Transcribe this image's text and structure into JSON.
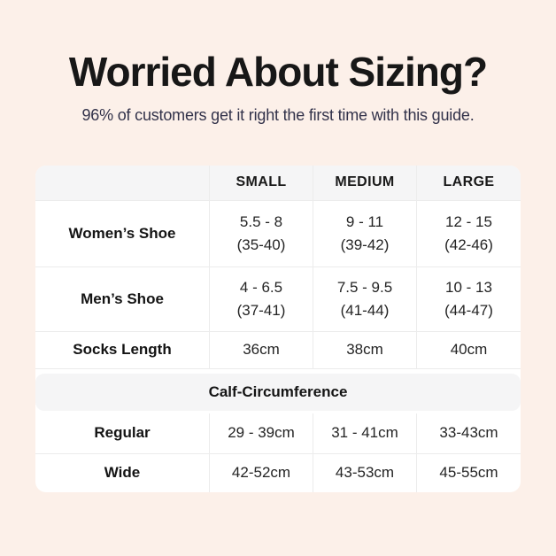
{
  "colors": {
    "page_background": "#fcf0e9",
    "card_background": "#ffffff",
    "band_background": "#f5f5f6",
    "title_text": "#171717",
    "subtitle_text": "#32324a"
  },
  "header": {
    "title": "Worried About Sizing?",
    "subtitle": "96% of customers get it right the first time with this guide."
  },
  "table": {
    "columns": {
      "small": "SMALL",
      "medium": "MEDIUM",
      "large": "LARGE"
    },
    "womens_shoe": {
      "label": "Women’s Shoe",
      "small_line1": "5.5 - 8",
      "small_line2": "(35-40)",
      "medium_line1": "9 - 11",
      "medium_line2": "(39-42)",
      "large_line1": "12 - 15",
      "large_line2": "(42-46)"
    },
    "mens_shoe": {
      "label": "Men’s Shoe",
      "small_line1": "4 - 6.5",
      "small_line2": "(37-41)",
      "medium_line1": "7.5 - 9.5",
      "medium_line2": "(41-44)",
      "large_line1": "10 - 13",
      "large_line2": "(44-47)"
    },
    "socks_length": {
      "label": "Socks Length",
      "small": "36cm",
      "medium": "38cm",
      "large": "40cm"
    },
    "calf_section_header": "Calf-Circumference",
    "regular": {
      "label": "Regular",
      "small": "29 - 39cm",
      "medium": "31 - 41cm",
      "large": "33-43cm"
    },
    "wide": {
      "label": "Wide",
      "small": "42-52cm",
      "medium": "43-53cm",
      "large": "45-55cm"
    }
  }
}
